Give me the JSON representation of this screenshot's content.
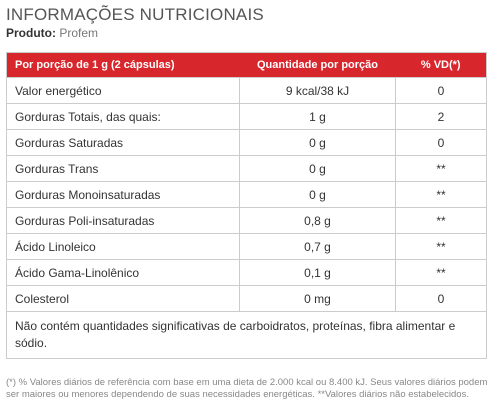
{
  "title": "INFORMAÇÕES NUTRICIONAIS",
  "product": {
    "label": "Produto:",
    "name": "Profem"
  },
  "table": {
    "headers": [
      "Por porção de 1 g (2 cápsulas)",
      "Quantidade por porção",
      "% VD(*)"
    ],
    "rows": [
      {
        "nutrient": "Valor energético",
        "amount": "9 kcal/38 kJ",
        "vd": "0"
      },
      {
        "nutrient": "Gorduras Totais, das quais:",
        "amount": "1 g",
        "vd": "2"
      },
      {
        "nutrient": "Gorduras Saturadas",
        "amount": "0 g",
        "vd": "0"
      },
      {
        "nutrient": "Gorduras Trans",
        "amount": "0 g",
        "vd": "**"
      },
      {
        "nutrient": "Gorduras Monoinsaturadas",
        "amount": "0 g",
        "vd": "**"
      },
      {
        "nutrient": "Gorduras Poli-insaturadas",
        "amount": "0,8 g",
        "vd": "**"
      },
      {
        "nutrient": "Ácido Linoleico",
        "amount": "0,7 g",
        "vd": "**"
      },
      {
        "nutrient": "Ácido Gama-Linolênico",
        "amount": "0,1 g",
        "vd": "**"
      },
      {
        "nutrient": "Colesterol",
        "amount": "0 mg",
        "vd": "0"
      }
    ],
    "note": "Não contém quantidades significativas de carboidratos, proteínas, fibra alimentar e sódio."
  },
  "footnote": "(*) % Valores diários de referência com base em uma dieta de 2.000 kcal ou 8.400 kJ. Seus valores diários podem ser maiores ou menores dependendo de suas necessidades energéticas. **Valores diários não estabelecidos.",
  "colors": {
    "header_bg": "#d8262d",
    "header_text": "#ffffff"
  }
}
